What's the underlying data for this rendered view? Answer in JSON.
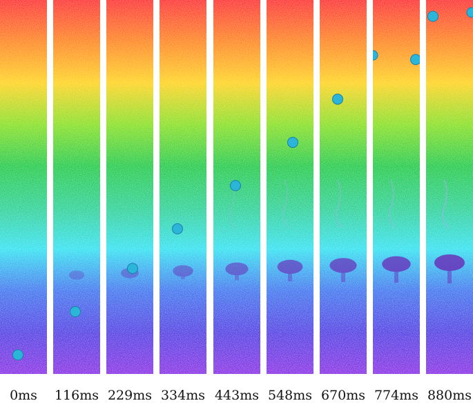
{
  "colors": {
    "gradient": [
      "#ff3b3b",
      "#ff8a2a",
      "#ffd52a",
      "#8de12e",
      "#2ecc52",
      "#38d39a",
      "#3ee3f2",
      "#4a7cf0",
      "#5a49e4",
      "#8f3ce6"
    ],
    "bubble": "#2bb6d9",
    "wake": "#6a2ab8"
  },
  "frames": [
    {
      "label": "0ms",
      "bubble_progress": 0.97,
      "wake": 0.0
    },
    {
      "label": "116ms",
      "bubble_progress": 0.85,
      "wake": 0.1
    },
    {
      "label": "229ms",
      "bubble_progress": 0.73,
      "wake": 0.25
    },
    {
      "label": "334ms",
      "bubble_progress": 0.62,
      "wake": 0.4
    },
    {
      "label": "443ms",
      "bubble_progress": 0.5,
      "wake": 0.55
    },
    {
      "label": "548ms",
      "bubble_progress": 0.38,
      "wake": 0.7
    },
    {
      "label": "670ms",
      "bubble_progress": 0.26,
      "wake": 0.8
    },
    {
      "label": "774ms",
      "bubble_progress": 0.15,
      "wake": 0.9
    },
    {
      "label": "880ms",
      "bubble_progress": 0.03,
      "wake": 1.0
    }
  ]
}
